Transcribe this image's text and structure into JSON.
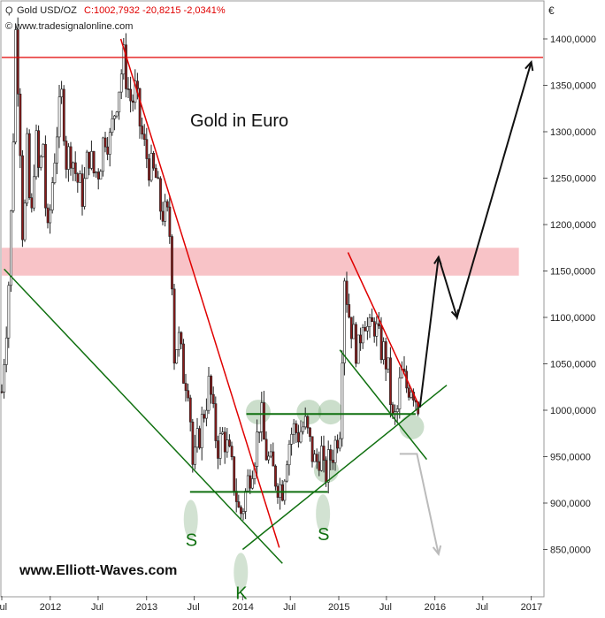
{
  "header": {
    "instrument_label": "Gold USD/OZ",
    "quote_label": "C:1002,7932 -20,8215 -2,0341%",
    "source_label": "© www.tradesignalonline.com",
    "currency_label": "€"
  },
  "chart_data": {
    "type": "candlestick",
    "title": "Gold in Euro",
    "watermark": "www.Elliott-Waves.com",
    "ylim": [
      800,
      1440
    ],
    "x_range": [
      "2011-07-01",
      "2017-02-15"
    ],
    "y_ticks": [
      {
        "value": 850,
        "label": "850,0000"
      },
      {
        "value": 900,
        "label": "900,0000"
      },
      {
        "value": 950,
        "label": "950,0000"
      },
      {
        "value": 1000,
        "label": "1000,0000"
      },
      {
        "value": 1050,
        "label": "1050,0000"
      },
      {
        "value": 1100,
        "label": "1100,0000"
      },
      {
        "value": 1150,
        "label": "1150,0000"
      },
      {
        "value": 1200,
        "label": "1200,0000"
      },
      {
        "value": 1250,
        "label": "1250,0000"
      },
      {
        "value": 1300,
        "label": "1300,0000"
      },
      {
        "value": 1350,
        "label": "1350,0000"
      },
      {
        "value": 1400,
        "label": "1400,0000"
      }
    ],
    "x_ticks": [
      {
        "date": "2011-07-01",
        "label": "Jul"
      },
      {
        "date": "2012-01-01",
        "label": "2012"
      },
      {
        "date": "2012-07-01",
        "label": "Jul"
      },
      {
        "date": "2013-01-01",
        "label": "2013"
      },
      {
        "date": "2013-07-01",
        "label": "Jul"
      },
      {
        "date": "2014-01-01",
        "label": "2014"
      },
      {
        "date": "2014-07-01",
        "label": "Jul"
      },
      {
        "date": "2015-01-01",
        "label": "2015"
      },
      {
        "date": "2015-07-01",
        "label": "Jul"
      },
      {
        "date": "2016-01-01",
        "label": "2016"
      },
      {
        "date": "2016-07-01",
        "label": "Jul"
      },
      {
        "date": "2017-01-01",
        "label": "2017"
      }
    ],
    "price_path": [
      [
        "2011-07-01",
        1020
      ],
      [
        "2011-07-10",
        1060
      ],
      [
        "2011-07-25",
        1120
      ],
      [
        "2011-08-10",
        1250
      ],
      [
        "2011-08-22",
        1410
      ],
      [
        "2011-09-05",
        1330
      ],
      [
        "2011-09-20",
        1170
      ],
      [
        "2011-10-05",
        1280
      ],
      [
        "2011-10-20",
        1190
      ],
      [
        "2011-11-05",
        1300
      ],
      [
        "2011-11-20",
        1250
      ],
      [
        "2011-12-05",
        1290
      ],
      [
        "2011-12-20",
        1175
      ],
      [
        "2012-01-10",
        1250
      ],
      [
        "2012-01-25",
        1300
      ],
      [
        "2012-02-15",
        1340
      ],
      [
        "2012-03-01",
        1270
      ],
      [
        "2012-03-20",
        1280
      ],
      [
        "2012-04-10",
        1250
      ],
      [
        "2012-05-05",
        1230
      ],
      [
        "2012-05-25",
        1280
      ],
      [
        "2012-06-15",
        1255
      ],
      [
        "2012-07-05",
        1260
      ],
      [
        "2012-07-25",
        1300
      ],
      [
        "2012-08-15",
        1290
      ],
      [
        "2012-09-05",
        1330
      ],
      [
        "2012-09-25",
        1360
      ],
      [
        "2012-10-05",
        1380
      ],
      [
        "2012-10-20",
        1350
      ],
      [
        "2012-11-05",
        1330
      ],
      [
        "2012-11-20",
        1345
      ],
      [
        "2012-12-05",
        1310
      ],
      [
        "2012-12-25",
        1280
      ],
      [
        "2013-01-15",
        1260
      ],
      [
        "2013-02-05",
        1250
      ],
      [
        "2013-02-20",
        1220
      ],
      [
        "2013-03-10",
        1210
      ],
      [
        "2013-03-25",
        1205
      ],
      [
        "2013-04-05",
        1170
      ],
      [
        "2013-04-16",
        1060
      ],
      [
        "2013-05-01",
        1080
      ],
      [
        "2013-05-20",
        1040
      ],
      [
        "2013-06-10",
        1030
      ],
      [
        "2013-06-27",
        930
      ],
      [
        "2013-07-10",
        960
      ],
      [
        "2013-08-01",
        990
      ],
      [
        "2013-08-28",
        1030
      ],
      [
        "2013-09-15",
        980
      ],
      [
        "2013-10-01",
        960
      ],
      [
        "2013-10-20",
        975
      ],
      [
        "2013-11-10",
        950
      ],
      [
        "2013-12-01",
        920
      ],
      [
        "2013-12-20",
        885
      ],
      [
        "2014-01-05",
        900
      ],
      [
        "2014-01-25",
        930
      ],
      [
        "2014-02-20",
        960
      ],
      [
        "2014-03-10",
        1000
      ],
      [
        "2014-03-25",
        960
      ],
      [
        "2014-04-15",
        940
      ],
      [
        "2014-05-10",
        925
      ],
      [
        "2014-05-30",
        915
      ],
      [
        "2014-06-20",
        960
      ],
      [
        "2014-07-10",
        980
      ],
      [
        "2014-08-01",
        975
      ],
      [
        "2014-08-25",
        985
      ],
      [
        "2014-09-15",
        960
      ],
      [
        "2014-10-05",
        940
      ],
      [
        "2014-10-25",
        960
      ],
      [
        "2014-11-06",
        925
      ],
      [
        "2014-11-25",
        945
      ],
      [
        "2014-12-15",
        960
      ],
      [
        "2015-01-05",
        985
      ],
      [
        "2015-01-22",
        1150
      ],
      [
        "2015-02-05",
        1110
      ],
      [
        "2015-02-25",
        1080
      ],
      [
        "2015-03-15",
        1060
      ],
      [
        "2015-04-05",
        1110
      ],
      [
        "2015-04-25",
        1080
      ],
      [
        "2015-05-15",
        1095
      ],
      [
        "2015-06-05",
        1070
      ],
      [
        "2015-06-25",
        1060
      ],
      [
        "2015-07-10",
        1035
      ],
      [
        "2015-07-24",
        985
      ],
      [
        "2015-08-10",
        995
      ],
      [
        "2015-08-25",
        1040
      ],
      [
        "2015-09-15",
        1025
      ],
      [
        "2015-10-05",
        1030
      ],
      [
        "2015-10-20",
        1015
      ],
      [
        "2015-11-05",
        1003
      ]
    ],
    "projection_black": [
      [
        "2015-11-05",
        1003
      ],
      [
        "2016-01-15",
        1165
      ],
      [
        "2016-03-25",
        1100
      ],
      [
        "2017-01-01",
        1375
      ]
    ],
    "projection_grey": [
      [
        "2015-08-20",
        953
      ],
      [
        "2015-10-25",
        953
      ],
      [
        "2016-01-15",
        845
      ]
    ],
    "resistance_zone": {
      "from": 1145,
      "to": 1175
    },
    "horizontal_lines": [
      {
        "name": "red-resistance-line",
        "value": 1380,
        "from": "2011-07-01",
        "to": "2017-02-15",
        "color": "#e00000"
      },
      {
        "name": "neckline",
        "value": 996,
        "from": "2014-01-15",
        "to": "2015-10-20",
        "color": "#107010"
      },
      {
        "name": "shoulder-base-line",
        "value": 912,
        "from": "2013-06-15",
        "to": "2014-11-20",
        "color": "#107010"
      }
    ],
    "trend_lines": [
      {
        "name": "red-downtrend-line-1",
        "from": [
          "2012-09-25",
          1400
        ],
        "to": [
          "2014-05-20",
          852
        ],
        "color": "#e00000"
      },
      {
        "name": "red-downtrend-line-2",
        "from": [
          "2015-02-05",
          1170
        ],
        "to": [
          "2015-11-05",
          1003
        ],
        "color": "#e00000"
      },
      {
        "name": "green-long-trend-line",
        "from": [
          "2011-07-10",
          1152
        ],
        "to": [
          "2014-06-01",
          835
        ],
        "color": "#107010"
      },
      {
        "name": "green-support-line",
        "from": [
          "2014-01-01",
          850
        ],
        "to": [
          "2016-02-15",
          1027
        ],
        "color": "#107010"
      },
      {
        "name": "green-channel-line",
        "from": [
          "2015-01-05",
          1065
        ],
        "to": [
          "2015-12-01",
          947
        ],
        "color": "#107010"
      }
    ],
    "pattern_markers": [
      {
        "date": "2014-03-01",
        "value": 998
      },
      {
        "date": "2014-09-10",
        "value": 998
      },
      {
        "date": "2014-12-01",
        "value": 998
      },
      {
        "date": "2014-11-15",
        "value": 935
      },
      {
        "date": "2015-10-05",
        "value": 982
      }
    ],
    "labels": [
      {
        "text": "S",
        "date": "2013-06-18",
        "value": 892
      },
      {
        "text": "K",
        "date": "2013-12-25",
        "value": 835
      },
      {
        "text": "S",
        "date": "2014-11-02",
        "value": 898
      }
    ]
  }
}
